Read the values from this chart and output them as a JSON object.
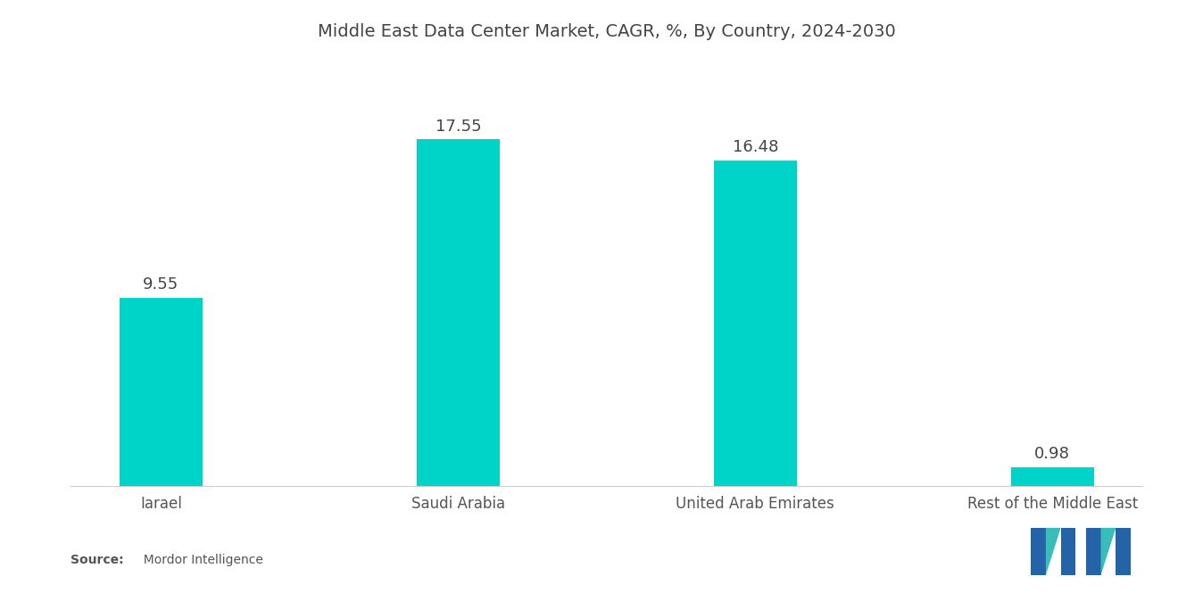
{
  "title": "Middle East Data Center Market, CAGR, %, By Country, 2024-2030",
  "categories": [
    "Iarael",
    "Saudi Arabia",
    "United Arab Emirates",
    "Rest of the Middle East"
  ],
  "values": [
    9.55,
    17.55,
    16.48,
    0.98
  ],
  "bar_color": "#00D4C8",
  "value_labels": [
    "9.55",
    "17.55",
    "16.48",
    "0.98"
  ],
  "source_bold": "Source:",
  "source_rest": "  Mordor Intelligence",
  "background_color": "#ffffff",
  "title_fontsize": 14,
  "label_fontsize": 13,
  "tick_fontsize": 12,
  "ylim": [
    0,
    21
  ],
  "bar_width": 0.28,
  "logo_colors": [
    "#2563a8",
    "#38bdb8"
  ]
}
